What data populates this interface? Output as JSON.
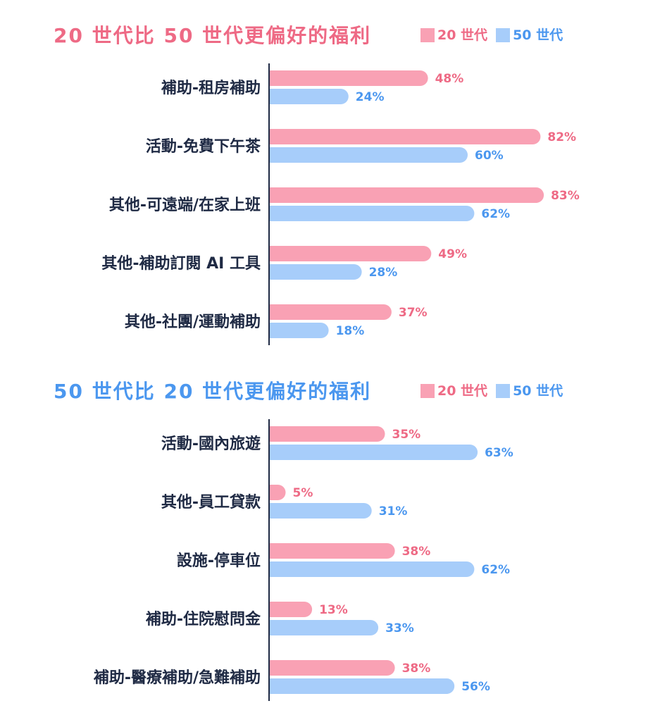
{
  "colors": {
    "gen20": "#f9a1b4",
    "gen50": "#a7cdfa",
    "gen20_text": "#ee6a85",
    "gen50_text": "#4b97ef",
    "label_text": "#1f2a44"
  },
  "chart_data": [
    {
      "type": "bar",
      "orientation": "horizontal",
      "title": "20 世代比 50 世代更偏好的福利",
      "categories": [
        "補助-租房補助",
        "活動-免費下午茶",
        "其他-可遠端/在家上班",
        "其他-補助訂閱 AI 工具",
        "其他-社團/運動補助"
      ],
      "series": [
        {
          "name": "20 世代",
          "values": [
            48,
            82,
            83,
            49,
            37
          ],
          "labels": [
            "48%",
            "82%",
            "83%",
            "49%",
            "37%"
          ]
        },
        {
          "name": "50 世代",
          "values": [
            24,
            60,
            62,
            28,
            18
          ],
          "labels": [
            "24%",
            "60%",
            "62%",
            "28%",
            "18%"
          ]
        }
      ],
      "legend": "top-right",
      "grid": false,
      "xlim": [
        0,
        100
      ]
    },
    {
      "type": "bar",
      "orientation": "horizontal",
      "title": "50 世代比 20 世代更偏好的福利",
      "categories": [
        "活動-國內旅遊",
        "其他-員工貸款",
        "設施-停車位",
        "補助-住院慰問金",
        "補助-醫療補助/急難補助"
      ],
      "series": [
        {
          "name": "20 世代",
          "values": [
            35,
            5,
            38,
            13,
            38
          ],
          "labels": [
            "35%",
            "5%",
            "38%",
            "13%",
            "38%"
          ]
        },
        {
          "name": "50 世代",
          "values": [
            63,
            31,
            62,
            33,
            56
          ],
          "labels": [
            "63%",
            "31%",
            "62%",
            "33%",
            "56%"
          ]
        }
      ],
      "legend": "top-right",
      "grid": false,
      "xlim": [
        0,
        100
      ]
    }
  ]
}
